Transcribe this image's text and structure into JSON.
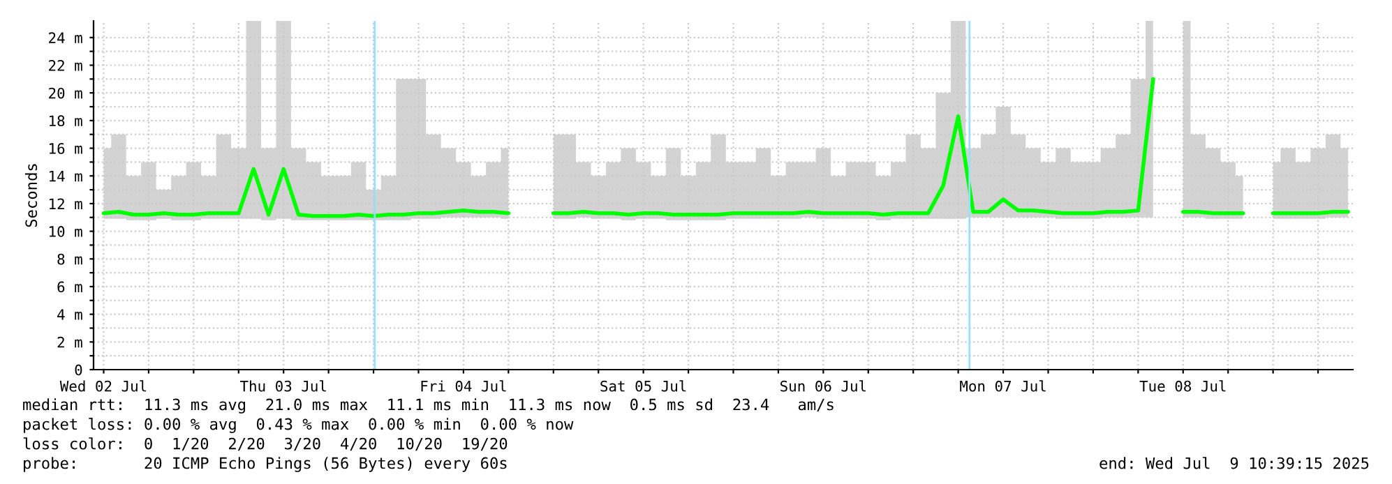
{
  "chart_data": {
    "type": "line",
    "ylabel": "Seconds",
    "x": [
      "2025-07-02T12:00",
      "2025-07-02T14:00",
      "2025-07-02T16:00",
      "2025-07-02T18:00",
      "2025-07-02T20:00",
      "2025-07-02T22:00",
      "2025-07-03T00:00",
      "2025-07-03T02:00",
      "2025-07-03T04:00",
      "2025-07-03T06:00",
      "2025-07-03T08:00",
      "2025-07-03T10:00",
      "2025-07-03T12:00",
      "2025-07-03T14:00",
      "2025-07-03T16:00",
      "2025-07-03T18:00",
      "2025-07-03T20:00",
      "2025-07-03T22:00",
      "2025-07-04T00:00",
      "2025-07-04T02:00",
      "2025-07-04T04:00",
      "2025-07-04T06:00",
      "2025-07-04T08:00",
      "2025-07-04T10:00",
      "2025-07-04T12:00",
      "2025-07-04T14:00",
      "2025-07-04T16:00",
      "2025-07-04T18:00",
      "2025-07-04T20:00",
      "2025-07-04T22:00",
      "2025-07-05T00:00",
      "2025-07-05T02:00",
      "2025-07-05T04:00",
      "2025-07-05T06:00",
      "2025-07-05T08:00",
      "2025-07-05T10:00",
      "2025-07-05T12:00",
      "2025-07-05T14:00",
      "2025-07-05T16:00",
      "2025-07-05T18:00",
      "2025-07-05T20:00",
      "2025-07-05T22:00",
      "2025-07-06T00:00",
      "2025-07-06T02:00",
      "2025-07-06T04:00",
      "2025-07-06T06:00",
      "2025-07-06T08:00",
      "2025-07-06T10:00",
      "2025-07-06T12:00",
      "2025-07-06T14:00",
      "2025-07-06T16:00",
      "2025-07-06T18:00",
      "2025-07-06T20:00",
      "2025-07-06T22:00",
      "2025-07-07T00:00",
      "2025-07-07T02:00",
      "2025-07-07T04:00",
      "2025-07-07T06:00",
      "2025-07-07T08:00",
      "2025-07-07T10:00",
      "2025-07-07T12:00",
      "2025-07-07T14:00",
      "2025-07-07T16:00",
      "2025-07-07T18:00",
      "2025-07-07T20:00",
      "2025-07-07T22:00",
      "2025-07-08T00:00",
      "2025-07-08T02:00",
      "2025-07-08T04:00",
      "2025-07-08T06:00",
      "2025-07-08T08:00",
      "2025-07-08T10:00",
      "2025-07-08T12:00",
      "2025-07-08T14:00",
      "2025-07-08T16:00",
      "2025-07-08T18:00",
      "2025-07-08T20:00",
      "2025-07-08T22:00",
      "2025-07-09T00:00",
      "2025-07-09T02:00",
      "2025-07-09T04:00",
      "2025-07-09T06:00",
      "2025-07-09T08:00",
      "2025-07-09T10:00"
    ],
    "series": [
      {
        "color": "#00ff00",
        "values": [
          11.3,
          11.4,
          11.2,
          11.2,
          11.3,
          11.2,
          11.2,
          11.3,
          11.3,
          11.3,
          14.5,
          11.2,
          14.5,
          11.2,
          11.1,
          11.1,
          11.1,
          11.2,
          11.1,
          11.2,
          11.2,
          11.3,
          11.3,
          11.4,
          11.5,
          11.4,
          11.4,
          11.3,
          null,
          null,
          11.3,
          11.3,
          11.4,
          11.3,
          11.3,
          11.2,
          11.3,
          11.3,
          11.2,
          11.2,
          11.2,
          11.2,
          11.3,
          11.3,
          11.3,
          11.3,
          11.3,
          11.4,
          11.3,
          11.3,
          11.3,
          11.3,
          11.2,
          11.3,
          11.3,
          11.3,
          13.3,
          18.3,
          11.4,
          11.4,
          12.3,
          11.5,
          11.5,
          11.4,
          11.3,
          11.3,
          11.3,
          11.4,
          11.4,
          11.5,
          21.0,
          null,
          11.4,
          11.4,
          11.3,
          11.3,
          11.3,
          null,
          11.3,
          11.3,
          11.3,
          11.3,
          11.4,
          11.4
        ],
        "upper": [
          16,
          17,
          14,
          15,
          13,
          14,
          15,
          14,
          17,
          16,
          25.2,
          16,
          25.2,
          16,
          15,
          14,
          14,
          15,
          13,
          14,
          21,
          21,
          17,
          16,
          15,
          14,
          15,
          16,
          null,
          null,
          17,
          17,
          15,
          14,
          15,
          16,
          15,
          14,
          16,
          14,
          15,
          17,
          15,
          15,
          16,
          14,
          15,
          15,
          16,
          14,
          15,
          15,
          14,
          15,
          17,
          16,
          20,
          25.2,
          16,
          17,
          19,
          17,
          16,
          15,
          16,
          15,
          15,
          16,
          17,
          21,
          25.2,
          null,
          25.2,
          17,
          16,
          15,
          14,
          null,
          15,
          16,
          15,
          16,
          17,
          16
        ],
        "lower": [
          10.9,
          10.9,
          10.8,
          10.8,
          10.9,
          10.8,
          10.8,
          10.9,
          10.9,
          10.9,
          10.9,
          10.8,
          10.9,
          10.8,
          10.8,
          10.8,
          10.8,
          10.8,
          10.8,
          10.8,
          10.8,
          10.9,
          10.9,
          11.0,
          11.0,
          11.0,
          11.0,
          10.9,
          null,
          null,
          10.9,
          10.9,
          11.0,
          10.9,
          10.9,
          10.8,
          10.9,
          10.9,
          10.8,
          10.8,
          10.8,
          10.8,
          10.9,
          10.9,
          10.9,
          10.9,
          10.9,
          11.0,
          10.9,
          10.9,
          10.9,
          10.9,
          10.8,
          10.9,
          10.9,
          10.9,
          10.9,
          10.9,
          11.0,
          11.0,
          11.0,
          11.0,
          11.0,
          11.0,
          10.9,
          10.9,
          10.9,
          11.0,
          11.0,
          11.0,
          11.0,
          null,
          11.0,
          11.0,
          10.9,
          10.9,
          10.9,
          null,
          10.9,
          10.9,
          10.9,
          10.9,
          11.0,
          11.0
        ]
      }
    ],
    "xlim": [
      "2025-07-02T10:39",
      "2025-07-09T10:39"
    ],
    "xticks": [
      {
        "value": "2025-07-02T12:00",
        "label": "Wed 02 Jul"
      },
      {
        "value": "2025-07-02T18:00",
        "label": null
      },
      {
        "value": "2025-07-03T00:00",
        "label": null
      },
      {
        "value": "2025-07-03T06:00",
        "label": null
      },
      {
        "value": "2025-07-03T12:00",
        "label": "Thu 03 Jul"
      },
      {
        "value": "2025-07-03T18:00",
        "label": null
      },
      {
        "value": "2025-07-04T00:00",
        "label": null
      },
      {
        "value": "2025-07-04T06:00",
        "label": null
      },
      {
        "value": "2025-07-04T12:00",
        "label": "Fri 04 Jul"
      },
      {
        "value": "2025-07-04T18:00",
        "label": null
      },
      {
        "value": "2025-07-05T00:00",
        "label": null
      },
      {
        "value": "2025-07-05T06:00",
        "label": null
      },
      {
        "value": "2025-07-05T12:00",
        "label": "Sat 05 Jul"
      },
      {
        "value": "2025-07-05T18:00",
        "label": null
      },
      {
        "value": "2025-07-06T00:00",
        "label": null
      },
      {
        "value": "2025-07-06T06:00",
        "label": null
      },
      {
        "value": "2025-07-06T12:00",
        "label": "Sun 06 Jul"
      },
      {
        "value": "2025-07-06T18:00",
        "label": null
      },
      {
        "value": "2025-07-07T00:00",
        "label": null
      },
      {
        "value": "2025-07-07T06:00",
        "label": null
      },
      {
        "value": "2025-07-07T12:00",
        "label": "Mon 07 Jul"
      },
      {
        "value": "2025-07-07T18:00",
        "label": null
      },
      {
        "value": "2025-07-08T00:00",
        "label": null
      },
      {
        "value": "2025-07-08T06:00",
        "label": null
      },
      {
        "value": "2025-07-08T12:00",
        "label": "Tue 08 Jul"
      },
      {
        "value": "2025-07-08T18:00",
        "label": null
      },
      {
        "value": "2025-07-09T00:00",
        "label": null
      },
      {
        "value": "2025-07-09T06:00",
        "label": null
      }
    ],
    "ylim": [
      0,
      25.2
    ],
    "yticks": [
      {
        "value": 0,
        "label": "0"
      },
      {
        "value": 1,
        "label": null
      },
      {
        "value": 2,
        "label": "2 m"
      },
      {
        "value": 3,
        "label": null
      },
      {
        "value": 4,
        "label": "4 m"
      },
      {
        "value": 5,
        "label": null
      },
      {
        "value": 6,
        "label": "6 m"
      },
      {
        "value": 7,
        "label": null
      },
      {
        "value": 8,
        "label": "8 m"
      },
      {
        "value": 9,
        "label": null
      },
      {
        "value": 10,
        "label": "10 m"
      },
      {
        "value": 11,
        "label": null
      },
      {
        "value": 12,
        "label": "12 m"
      },
      {
        "value": 13,
        "label": null
      },
      {
        "value": 14,
        "label": "14 m"
      },
      {
        "value": 15,
        "label": null
      },
      {
        "value": 16,
        "label": "16 m"
      },
      {
        "value": 17,
        "label": null
      },
      {
        "value": 18,
        "label": "18 m"
      },
      {
        "value": 19,
        "label": null
      },
      {
        "value": 20,
        "label": "20 m"
      },
      {
        "value": 21,
        "label": null
      },
      {
        "value": 22,
        "label": "22 m"
      },
      {
        "value": 23,
        "label": null
      },
      {
        "value": 24,
        "label": "24 m"
      }
    ],
    "grid": true,
    "ref_lines": [
      {
        "axis": "x",
        "value": "2025-07-04T00:10",
        "color": "#99ddff"
      },
      {
        "axis": "x",
        "value": "2025-07-07T07:30",
        "color": "#99ddff"
      }
    ],
    "annotations": [
      "median rtt:  11.3 ms avg  21.0 ms max  11.1 ms min  11.3 ms now  0.5 ms sd  23.4   am/s",
      "packet loss: 0.00 % avg  0.43 % max  0.00 % min  0.00 % now",
      "loss color:  0  1/20  2/20  3/20  4/20  10/20  19/20",
      "probe:       20 ICMP Echo Pings (56 Bytes) every 60s",
      "end: Wed Jul  9 10:39:15 2025"
    ]
  }
}
